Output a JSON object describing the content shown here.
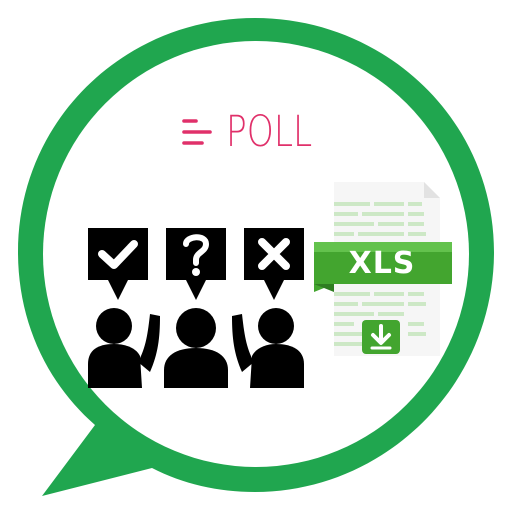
{
  "poll": {
    "title": "POLL",
    "menu_icon": "hamburger-lines-icon",
    "accent_color": "#e0306a"
  },
  "xls_file": {
    "label": "XLS",
    "file_icon": "spreadsheet-file-icon",
    "download_icon": "download-arrow-icon",
    "accent_color": "#43a52f"
  },
  "voters": {
    "icon": "voting-people-icon",
    "signs": [
      "check-icon",
      "question-icon",
      "cross-icon"
    ],
    "color": "#000000"
  },
  "bubble": {
    "icon": "chat-bubble-icon",
    "color": "#20a64f"
  }
}
